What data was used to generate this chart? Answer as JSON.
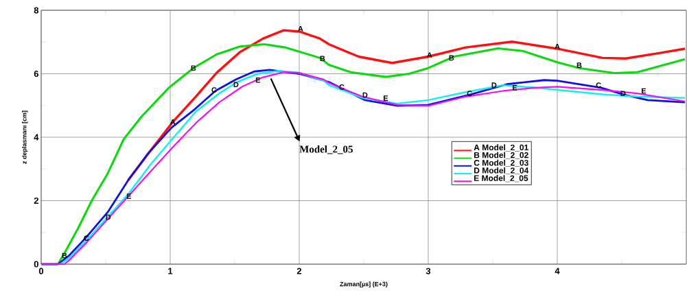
{
  "chart_data": {
    "type": "line",
    "xlabel": "Zaman[µs] (E+3)",
    "ylabel": "z deplasmanı [cm]",
    "xlim": [
      0,
      5
    ],
    "ylim": [
      0,
      8
    ],
    "xticks": [
      0,
      {
        "value": 0.5,
        "label": null
      },
      1,
      {
        "value": 1.5,
        "label": null
      },
      2,
      {
        "value": 2.5,
        "label": null
      },
      3,
      {
        "value": 3.5,
        "label": null
      },
      4,
      {
        "value": 4.5,
        "label": null
      }
    ],
    "yticks": [
      0,
      {
        "value": 1,
        "label": null
      },
      2,
      {
        "value": 3,
        "label": null
      },
      4,
      {
        "value": 5,
        "label": null
      },
      6,
      {
        "value": 7,
        "label": null
      },
      8
    ],
    "grid": true,
    "legend": "right",
    "series": [
      {
        "name": "A Model_2_01",
        "color": "#ff1010",
        "x": [
          0.675,
          0.834,
          1.02,
          1.19,
          1.36,
          1.54,
          1.72,
          1.88,
          2.0,
          2.16,
          2.23,
          2.46,
          2.72,
          3.0,
          3.29,
          3.65,
          4.0,
          4.35,
          4.53,
          4.79,
          4.99
        ],
        "values": [
          2.65,
          3.51,
          4.48,
          5.24,
          6.03,
          6.68,
          7.11,
          7.37,
          7.33,
          7.11,
          6.93,
          6.54,
          6.34,
          6.54,
          6.83,
          7.01,
          6.79,
          6.5,
          6.48,
          6.65,
          6.79
        ]
      },
      {
        "name": "B Model_2_02",
        "color": "#10d810",
        "x": [
          0,
          0.13,
          0.18,
          0.286,
          0.392,
          0.516,
          0.64,
          0.78,
          0.99,
          1.18,
          1.36,
          1.54,
          1.73,
          1.89,
          2.16,
          2.23,
          2.4,
          2.67,
          2.85,
          3.0,
          3.2,
          3.54,
          3.73,
          4.0,
          4.17,
          4.44,
          4.62,
          4.99
        ],
        "values": [
          0,
          0,
          0.34,
          1.13,
          2.0,
          2.86,
          3.94,
          4.66,
          5.56,
          6.18,
          6.61,
          6.86,
          6.93,
          6.83,
          6.5,
          6.28,
          6.05,
          5.9,
          6.0,
          6.18,
          6.54,
          6.8,
          6.72,
          6.36,
          6.18,
          6.02,
          6.05,
          6.46
        ]
      },
      {
        "name": "C Model_2_03",
        "color": "#1010e0",
        "x": [
          0,
          0.13,
          0.216,
          0.348,
          0.516,
          0.675,
          0.834,
          1.01,
          1.19,
          1.35,
          1.51,
          1.65,
          1.77,
          2.0,
          2.23,
          2.51,
          2.76,
          3.0,
          3.33,
          3.61,
          3.9,
          4.0,
          4.34,
          4.51,
          4.7,
          4.99
        ],
        "values": [
          0,
          0,
          0.27,
          0.84,
          1.64,
          2.65,
          3.51,
          4.3,
          4.88,
          5.46,
          5.82,
          6.07,
          6.12,
          6.0,
          5.74,
          5.17,
          4.99,
          5.02,
          5.35,
          5.67,
          5.8,
          5.78,
          5.56,
          5.35,
          5.17,
          5.1
        ]
      },
      {
        "name": "D Model_2_04",
        "color": "#10f0f0",
        "x": [
          0,
          0.15,
          0.216,
          0.357,
          0.516,
          0.675,
          0.85,
          1.03,
          1.2,
          1.38,
          1.52,
          1.68,
          1.84,
          2.0,
          2.19,
          2.23,
          2.49,
          2.76,
          3.0,
          3.29,
          3.58,
          3.83,
          4.0,
          4.35,
          4.62,
          4.99
        ],
        "values": [
          0,
          0,
          0.19,
          0.77,
          1.49,
          2.21,
          3.15,
          4.01,
          4.81,
          5.38,
          5.74,
          6.0,
          6.09,
          6.03,
          5.78,
          5.64,
          5.24,
          5.06,
          5.17,
          5.42,
          5.64,
          5.56,
          5.49,
          5.35,
          5.28,
          5.24
        ]
      },
      {
        "name": "E Model_2_05",
        "color": "#f010f0",
        "x": [
          0,
          0.18,
          0.216,
          0.357,
          0.516,
          0.675,
          0.85,
          1.03,
          1.2,
          1.38,
          1.56,
          1.72,
          1.88,
          2.0,
          2.19,
          2.23,
          2.49,
          2.76,
          3.0,
          3.29,
          3.58,
          3.83,
          4.0,
          4.35,
          4.62,
          4.99
        ],
        "values": [
          0,
          0,
          0.12,
          0.7,
          1.42,
          2.14,
          2.93,
          3.73,
          4.45,
          5.1,
          5.6,
          5.89,
          6.05,
          6.03,
          5.82,
          5.71,
          5.28,
          5.02,
          4.99,
          5.28,
          5.46,
          5.56,
          5.59,
          5.49,
          5.38,
          5.13
        ]
      }
    ],
    "annotations": [
      {
        "text": "Model_2_05",
        "x": 1.78,
        "y": 5.85
      },
      {
        "text": "A",
        "x": 1.02,
        "y": 4.48
      },
      {
        "text": "A",
        "x": 2.01,
        "y": 7.42
      },
      {
        "text": "A",
        "x": 3.01,
        "y": 6.59
      },
      {
        "text": "A",
        "x": 4.0,
        "y": 6.86
      },
      {
        "text": "B",
        "x": 0.18,
        "y": 0.27
      },
      {
        "text": "B",
        "x": 1.18,
        "y": 6.18
      },
      {
        "text": "B",
        "x": 2.18,
        "y": 6.48
      },
      {
        "text": "B",
        "x": 3.18,
        "y": 6.5
      },
      {
        "text": "B",
        "x": 4.17,
        "y": 6.27
      },
      {
        "text": "C",
        "x": 0.35,
        "y": 0.82
      },
      {
        "text": "C",
        "x": 1.34,
        "y": 5.49
      },
      {
        "text": "C",
        "x": 2.33,
        "y": 5.58
      },
      {
        "text": "C",
        "x": 3.32,
        "y": 5.38
      },
      {
        "text": "C",
        "x": 4.32,
        "y": 5.64
      },
      {
        "text": "D",
        "x": 0.52,
        "y": 1.48
      },
      {
        "text": "D",
        "x": 1.51,
        "y": 5.66
      },
      {
        "text": "D",
        "x": 2.51,
        "y": 5.33
      },
      {
        "text": "D",
        "x": 3.51,
        "y": 5.64
      },
      {
        "text": "D",
        "x": 4.51,
        "y": 5.38
      },
      {
        "text": "E",
        "x": 0.68,
        "y": 2.14
      },
      {
        "text": "E",
        "x": 1.68,
        "y": 5.8
      },
      {
        "text": "E",
        "x": 2.67,
        "y": 5.23
      },
      {
        "text": "E",
        "x": 3.67,
        "y": 5.56
      },
      {
        "text": "E",
        "x": 4.67,
        "y": 5.46
      }
    ]
  }
}
